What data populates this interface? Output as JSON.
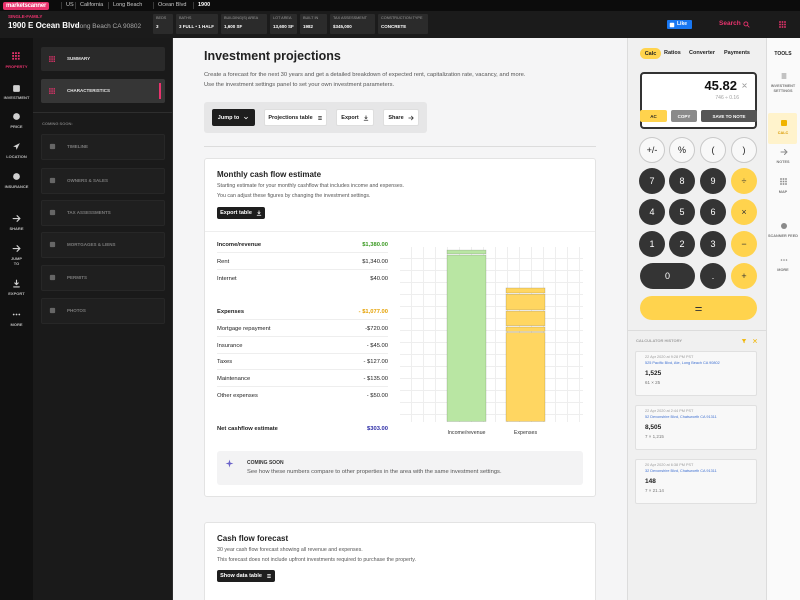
{
  "topbar": {
    "logo": "marketscanner",
    "breadcrumbs": [
      "US",
      "California",
      "Long Beach",
      "Ocean Blvd",
      "1900"
    ]
  },
  "property": {
    "type": "SINGLE-FAMILY",
    "address": "1900 E Ocean Blvd",
    "city": "Long Beach CA 90802",
    "stats": [
      {
        "label": "BEDS",
        "value": "3"
      },
      {
        "label": "BATHS",
        "value": "3 FULL • 1 HALF"
      },
      {
        "label": "BUILDING(S) AREA",
        "value": "1,600 SF"
      },
      {
        "label": "LOT AREA",
        "value": "13,600 SF"
      },
      {
        "label": "BUILT IN",
        "value": "1982"
      },
      {
        "label": "TAX ASSESSMENT",
        "value": "$345,000"
      },
      {
        "label": "CONSTRUCTION TYPE",
        "value": "CONCRETE"
      }
    ]
  },
  "header_actions": {
    "like": "Like",
    "search": "Search"
  },
  "nav": [
    "PROPERTY",
    "INVESTMENT",
    "PRICE",
    "LOCATION",
    "INSURANCE",
    "SHARE",
    "JUMP TO",
    "EXPORT",
    "MORE"
  ],
  "subnav": {
    "items": [
      "SUMMARY",
      "CHARACTERISTICS"
    ],
    "coming_soon_label": "COMING SOON:",
    "coming_soon": [
      "TIMELINE",
      "OWNERS & SALES",
      "TAX ASSESSMENTS",
      "MORTGAGES & LIENS",
      "PERMITS",
      "PHOTOS"
    ]
  },
  "main": {
    "title": "Investment projections",
    "description": [
      "Create a forecast for the next 30 years and get a detailed breakdown of expected rent, capitalization rate, vacancy, and more.",
      "Use the investment settings panel to set your own investment parameters."
    ],
    "toolbar": [
      "Jump to",
      "Projections table",
      "Export",
      "Share"
    ]
  },
  "cashflow": {
    "title": "Monthly cash flow estimate",
    "description": [
      "Starting estimate for your monthly cashflow that includes income and expenses.",
      "You can adjust these figures by changing the investment settings."
    ],
    "button": "Export table",
    "rows": [
      {
        "label": "Income/revenue",
        "value": "$1,380.00"
      },
      {
        "label": "Rent",
        "value": "$1,340.00"
      },
      {
        "label": "Internet",
        "value": "$40.00"
      },
      {
        "label": "Expenses",
        "value": "- $1,077.00"
      },
      {
        "label": "Mortgage repayment",
        "value": "-$720.00"
      },
      {
        "label": "Insurance",
        "value": "- $45.00"
      },
      {
        "label": "Taxes",
        "value": "- $127.00"
      },
      {
        "label": "Maintenance",
        "value": "- $135.00"
      },
      {
        "label": "Other expenses",
        "value": "- $50.00"
      },
      {
        "label": "Net cashflow estimate",
        "value": "$303.00"
      }
    ],
    "coming_soon": {
      "label": "COMING SOON",
      "text": "See how these numbers compare to other properties in the area with the same investment settings."
    }
  },
  "chart_data": {
    "type": "bar",
    "stacked": true,
    "categories": [
      "Income/revenue",
      "Expenses"
    ],
    "ylim": [
      0,
      1400
    ],
    "series": [
      {
        "color": "#b9e6a3",
        "values": [
          1340,
          null
        ]
      },
      {
        "color": "#b9e6a3",
        "values": [
          40,
          null
        ]
      },
      {
        "color": "#ffd661",
        "values": [
          null,
          720
        ]
      },
      {
        "color": "#ffd661",
        "values": [
          null,
          45
        ]
      },
      {
        "color": "#ffd661",
        "values": [
          null,
          127
        ]
      },
      {
        "color": "#ffd661",
        "values": [
          null,
          135
        ]
      },
      {
        "color": "#ffd661",
        "values": [
          null,
          50
        ]
      }
    ]
  },
  "forecast": {
    "title": "Cash flow forecast",
    "description": [
      "30 year cash flow forecast showing all revenue and expenses.",
      "This forecast does not include upfront investments required to purchase the property."
    ],
    "button": "Show data table"
  },
  "calculator": {
    "tabs": [
      "Calc",
      "Ratios",
      "Converter",
      "Payments"
    ],
    "display": "45.82",
    "expression": "746 ÷ 0.16",
    "actions": [
      "AC",
      "COPY",
      "SAVE TO NOTE"
    ],
    "keys": [
      "+/-",
      "%",
      "(",
      ")",
      "7",
      "8",
      "9",
      "÷",
      "4",
      "5",
      "6",
      "×",
      "1",
      "2",
      "3",
      "−",
      "0",
      ".",
      "+",
      "="
    ],
    "history_title": "CALCULATOR HISTORY",
    "history": [
      {
        "date": "22 Apr 2020 at 9:28 PM PST",
        "address": "525 Pacific Blvd, Ate, Long Beach CA 90802",
        "result": "1,525",
        "expression": "61 × 25"
      },
      {
        "date": "22 Apr 2020 at 2:44 PM PST",
        "address": "52 Devonshire Blvd, Chatsworth CA 91311",
        "result": "8,505",
        "expression": "7 × 1,215"
      },
      {
        "date": "20 Apr 2020 at 6:38 PM PST",
        "address": "32 Devonshire Blvd, Chatsworth CA 91311",
        "result": "148",
        "expression": "7 × 21.14"
      }
    ]
  },
  "tools": {
    "title": "TOOLS",
    "items": [
      "INVESTMENT SETTINGS",
      "CALC",
      "NOTES",
      "MAP",
      "SCANNER FEED",
      "MORE"
    ]
  }
}
